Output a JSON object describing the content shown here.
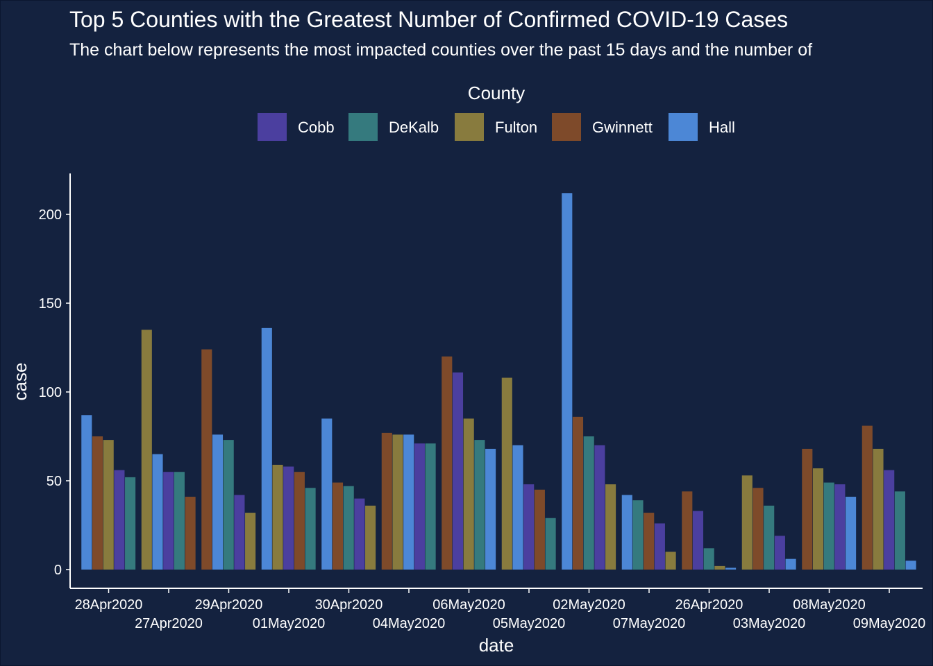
{
  "title": "Top 5 Counties with the Greatest Number of Confirmed COVID-19 Cases",
  "subtitle": "The chart below represents the most impacted counties over the past 15 days and the number of",
  "chart_data": {
    "type": "bar",
    "xlabel": "date",
    "ylabel": "case",
    "ylim": [
      0,
      222
    ],
    "yticks": [
      0,
      50,
      100,
      150,
      200
    ],
    "grid": false,
    "legend": {
      "title": "County",
      "position": "top"
    },
    "series_names": [
      "Cobb",
      "DeKalb",
      "Fulton",
      "Gwinnett",
      "Hall"
    ],
    "colors": {
      "Cobb": "#4b3f9f",
      "DeKalb": "#357a7e",
      "Fulton": "#887b3e",
      "Gwinnett": "#7e4a2a",
      "Hall": "#4c87d6"
    },
    "groups": [
      {
        "date": "28Apr2020",
        "bars": [
          [
            "Hall",
            87
          ],
          [
            "Gwinnett",
            75
          ],
          [
            "Fulton",
            73
          ],
          [
            "Cobb",
            56
          ],
          [
            "DeKalb",
            52
          ]
        ]
      },
      {
        "date": "27Apr2020",
        "bars": [
          [
            "Fulton",
            135
          ],
          [
            "Hall",
            65
          ],
          [
            "Cobb",
            55
          ],
          [
            "DeKalb",
            55
          ],
          [
            "Gwinnett",
            41
          ]
        ]
      },
      {
        "date": "29Apr2020",
        "bars": [
          [
            "Gwinnett",
            124
          ],
          [
            "Hall",
            76
          ],
          [
            "DeKalb",
            73
          ],
          [
            "Cobb",
            42
          ],
          [
            "Fulton",
            32
          ]
        ]
      },
      {
        "date": "01May2020",
        "bars": [
          [
            "Hall",
            136
          ],
          [
            "Fulton",
            59
          ],
          [
            "Cobb",
            58
          ],
          [
            "Gwinnett",
            55
          ],
          [
            "DeKalb",
            46
          ]
        ]
      },
      {
        "date": "30Apr2020",
        "bars": [
          [
            "Hall",
            85
          ],
          [
            "Gwinnett",
            49
          ],
          [
            "DeKalb",
            47
          ],
          [
            "Cobb",
            40
          ],
          [
            "Fulton",
            36
          ]
        ]
      },
      {
        "date": "04May2020",
        "bars": [
          [
            "Gwinnett",
            77
          ],
          [
            "Fulton",
            76
          ],
          [
            "Hall",
            76
          ],
          [
            "Cobb",
            71
          ],
          [
            "DeKalb",
            71
          ]
        ]
      },
      {
        "date": "06May2020",
        "bars": [
          [
            "Gwinnett",
            120
          ],
          [
            "Cobb",
            111
          ],
          [
            "Fulton",
            85
          ],
          [
            "DeKalb",
            73
          ],
          [
            "Hall",
            68
          ]
        ]
      },
      {
        "date": "05May2020",
        "bars": [
          [
            "Fulton",
            108
          ],
          [
            "Hall",
            70
          ],
          [
            "Cobb",
            48
          ],
          [
            "Gwinnett",
            45
          ],
          [
            "DeKalb",
            29
          ]
        ]
      },
      {
        "date": "02May2020",
        "bars": [
          [
            "Hall",
            212
          ],
          [
            "Gwinnett",
            86
          ],
          [
            "DeKalb",
            75
          ],
          [
            "Cobb",
            70
          ],
          [
            "Fulton",
            48
          ]
        ]
      },
      {
        "date": "07May2020",
        "bars": [
          [
            "Hall",
            42
          ],
          [
            "DeKalb",
            39
          ],
          [
            "Gwinnett",
            32
          ],
          [
            "Cobb",
            26
          ],
          [
            "Fulton",
            10
          ]
        ]
      },
      {
        "date": "26Apr2020",
        "bars": [
          [
            "Gwinnett",
            44
          ],
          [
            "Cobb",
            33
          ],
          [
            "DeKalb",
            12
          ],
          [
            "Fulton",
            2
          ],
          [
            "Hall",
            1
          ]
        ]
      },
      {
        "date": "03May2020",
        "bars": [
          [
            "Fulton",
            53
          ],
          [
            "Gwinnett",
            46
          ],
          [
            "DeKalb",
            36
          ],
          [
            "Cobb",
            19
          ],
          [
            "Hall",
            6
          ]
        ]
      },
      {
        "date": "08May2020",
        "bars": [
          [
            "Gwinnett",
            68
          ],
          [
            "Fulton",
            57
          ],
          [
            "DeKalb",
            49
          ],
          [
            "Cobb",
            48
          ],
          [
            "Hall",
            41
          ]
        ]
      },
      {
        "date": "09May2020",
        "bars": [
          [
            "Gwinnett",
            81
          ],
          [
            "Fulton",
            68
          ],
          [
            "Cobb",
            56
          ],
          [
            "DeKalb",
            44
          ],
          [
            "Hall",
            5
          ]
        ]
      }
    ]
  }
}
